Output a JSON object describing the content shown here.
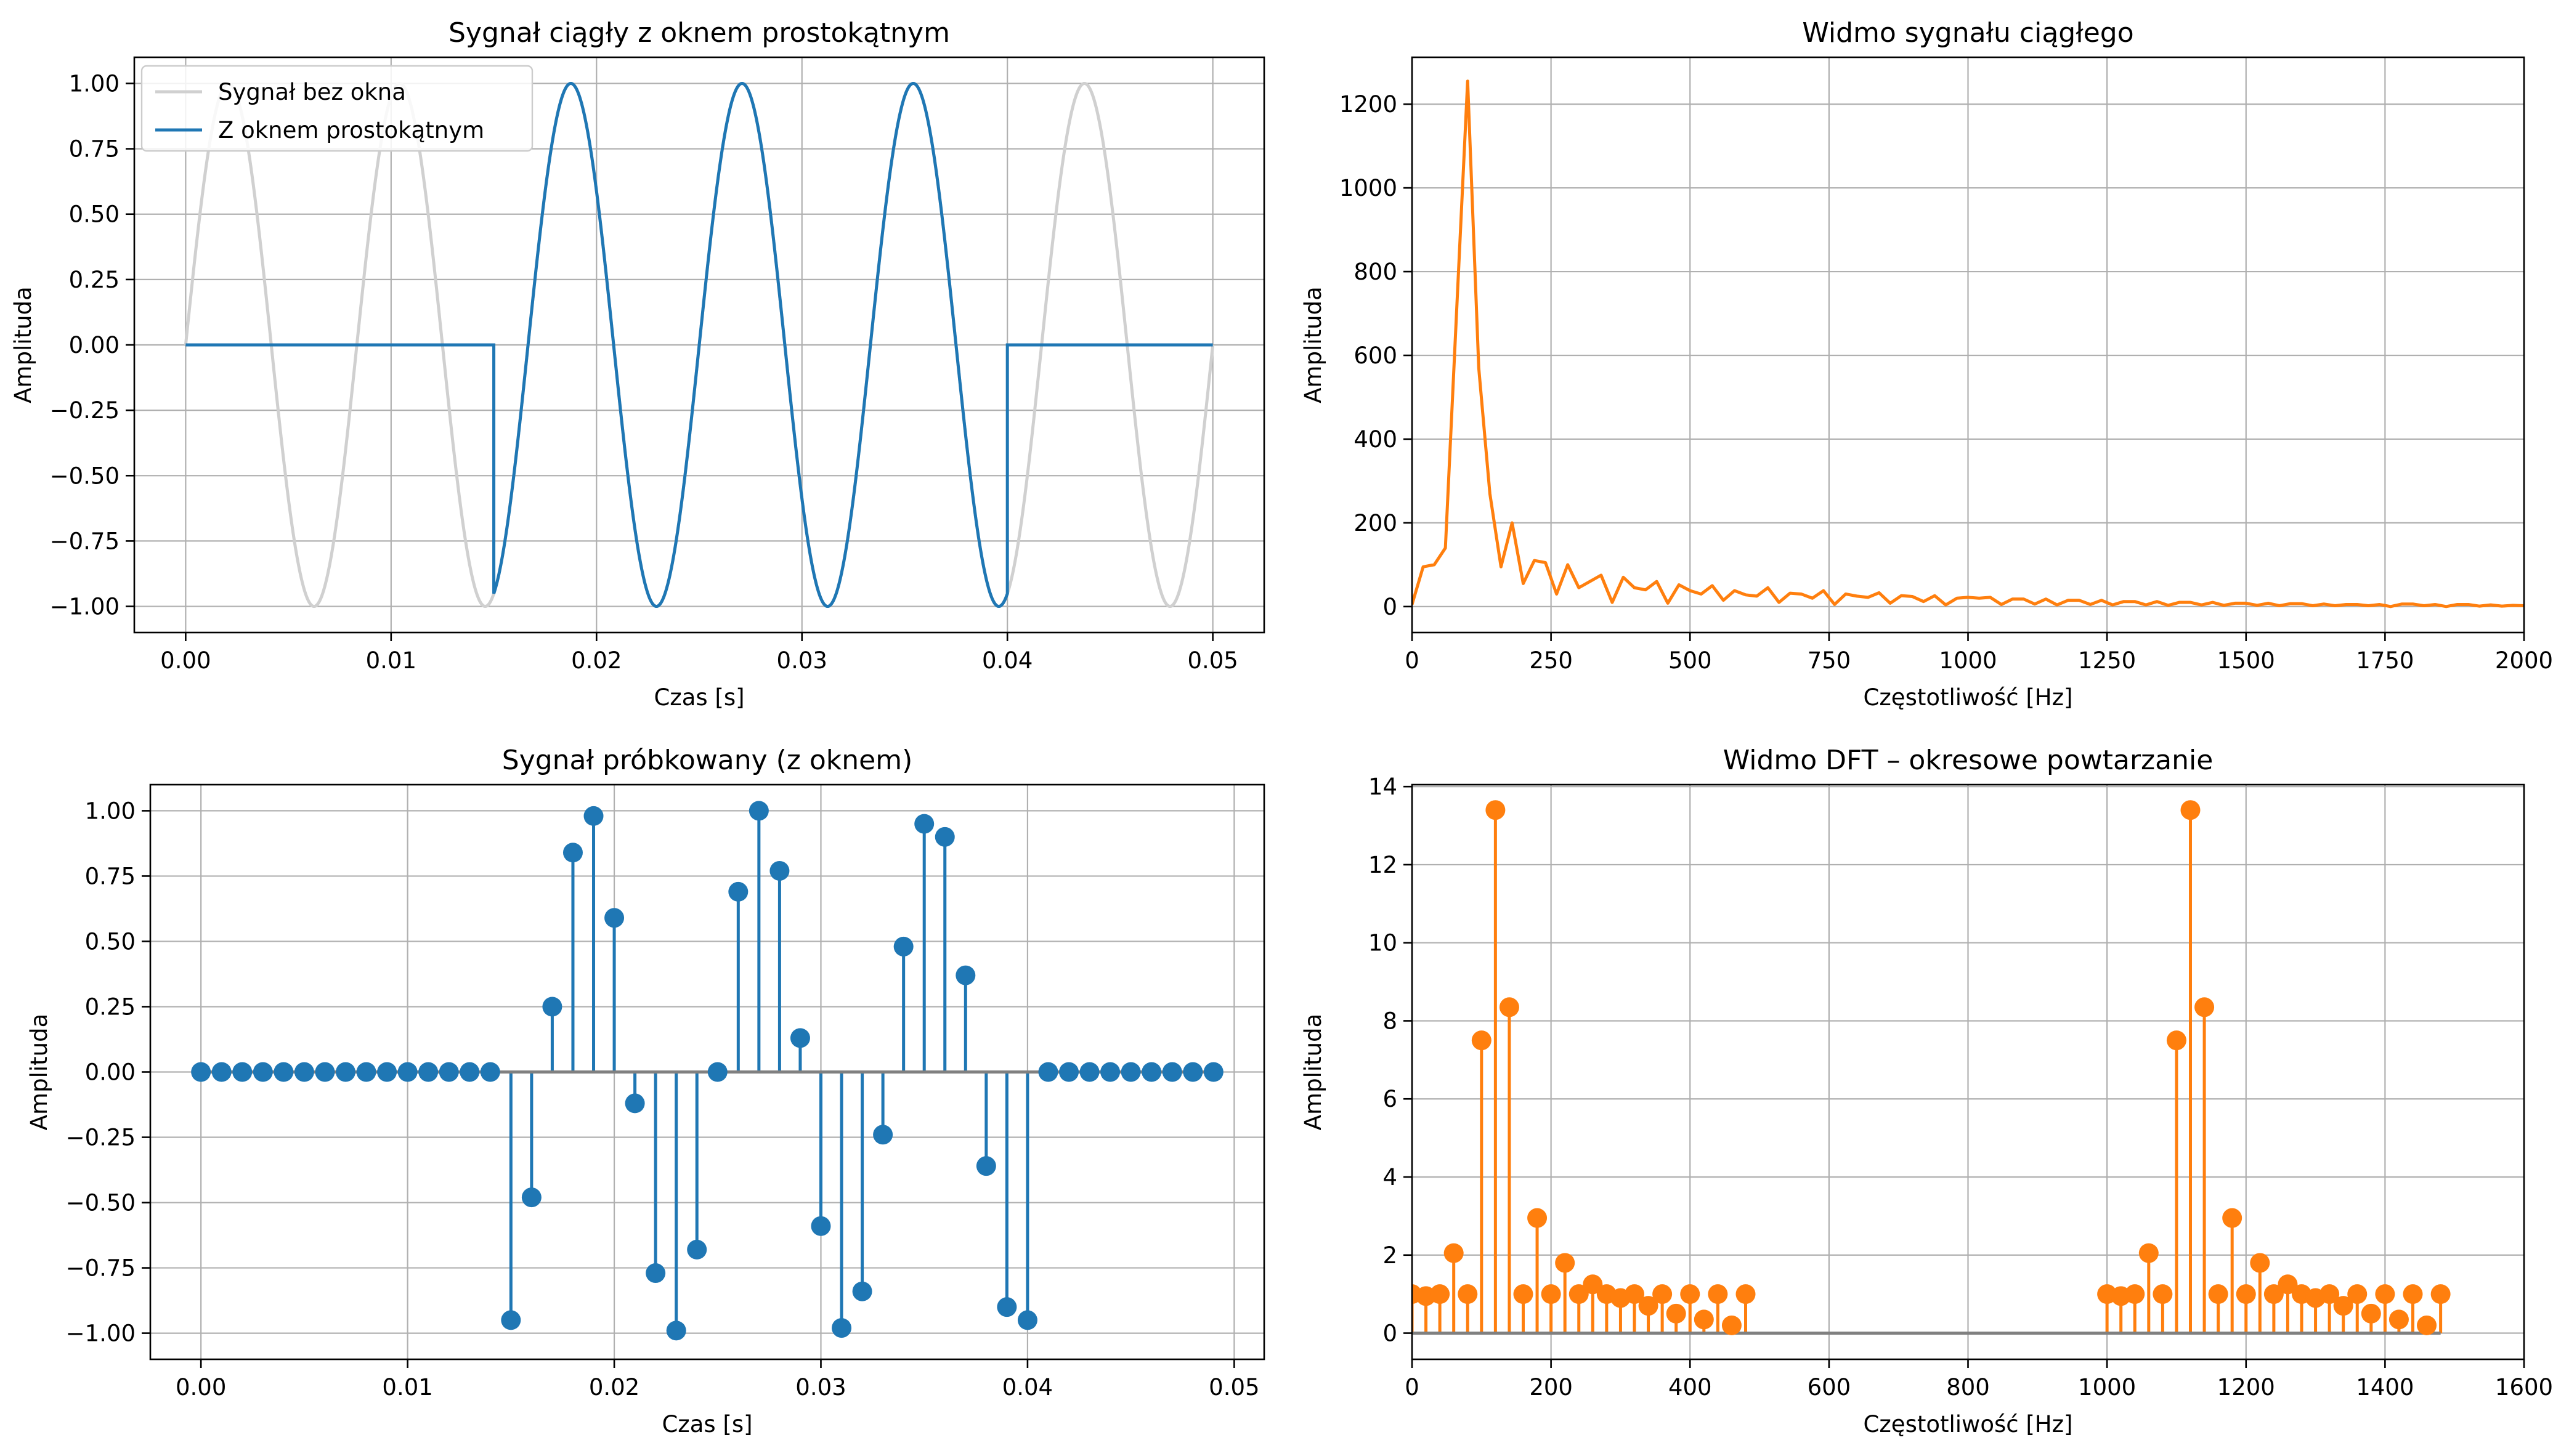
{
  "colors": {
    "blue": "#1f77b4",
    "orange": "#ff7f0e",
    "gray": "#d0d0d0",
    "baseline": "#808080",
    "grid": "#b0b0b0"
  },
  "chart_data": [
    {
      "id": "continuous",
      "type": "line",
      "title": "Sygnał ciągły z oknem prostokątnym",
      "xlabel": "Czas [s]",
      "ylabel": "Amplituda",
      "xlim": [
        -0.0025,
        0.0525
      ],
      "ylim": [
        -1.1,
        1.1
      ],
      "xticks": [
        0,
        0.01,
        0.02,
        0.03,
        0.04,
        0.05
      ],
      "xtick_labels": [
        "0.00",
        "0.01",
        "0.02",
        "0.03",
        "0.04",
        "0.05"
      ],
      "yticks": [
        -1,
        -0.75,
        -0.5,
        -0.25,
        0,
        0.25,
        0.5,
        0.75,
        1
      ],
      "ytick_labels": [
        "−1.00",
        "−0.75",
        "−0.50",
        "−0.25",
        "0.00",
        "0.25",
        "0.50",
        "0.75",
        "1.00"
      ],
      "legend_position": "top-left",
      "series": [
        {
          "name": "Sygnał bez okna",
          "color": "#d0d0d0",
          "function": "sin(2*pi*120*t)",
          "t_range": [
            0,
            0.05
          ]
        },
        {
          "name": "Z oknem prostokątnym",
          "color": "#1f77b4",
          "function": "sin(2*pi*120*t) for 0.015<=t<=0.04, else 0",
          "t_range": [
            0,
            0.05
          ],
          "window": [
            0.015,
            0.04
          ]
        }
      ]
    },
    {
      "id": "spectrum",
      "type": "line",
      "title": "Widmo sygnału ciągłego",
      "xlabel": "Częstotliwość [Hz]",
      "ylabel": "Amplituda",
      "xlim": [
        0,
        2000
      ],
      "ylim": [
        -62,
        1312
      ],
      "xticks": [
        0,
        250,
        500,
        750,
        1000,
        1250,
        1500,
        1750,
        2000
      ],
      "xtick_labels": [
        "0",
        "250",
        "500",
        "750",
        "1000",
        "1250",
        "1500",
        "1750",
        "2000"
      ],
      "yticks": [
        0,
        200,
        400,
        600,
        800,
        1000,
        1200
      ],
      "ytick_labels": [
        "0",
        "200",
        "400",
        "600",
        "800",
        "1000",
        "1200"
      ],
      "series": [
        {
          "name": "spectrum",
          "color": "#ff7f0e",
          "x": [
            0,
            20,
            40,
            60,
            80,
            100,
            120,
            140,
            160,
            180,
            200,
            220,
            240,
            260,
            280,
            300,
            320,
            340,
            360,
            380,
            400,
            420,
            440,
            460,
            480,
            500,
            520,
            540,
            560,
            580,
            600,
            620,
            640,
            660,
            680,
            700,
            720,
            740,
            760,
            780,
            800,
            820,
            840,
            860,
            880,
            900,
            920,
            940,
            960,
            980,
            1000,
            1020,
            1040,
            1060,
            1080,
            1100,
            1120,
            1140,
            1160,
            1180,
            1200,
            1220,
            1240,
            1260,
            1280,
            1300,
            1320,
            1340,
            1360,
            1380,
            1400,
            1420,
            1440,
            1460,
            1480,
            1500,
            1520,
            1540,
            1560,
            1580,
            1600,
            1620,
            1640,
            1660,
            1680,
            1700,
            1720,
            1740,
            1760,
            1780,
            1800,
            1820,
            1840,
            1860,
            1880,
            1900,
            1920,
            1940,
            1960,
            1980,
            2000
          ],
          "y": [
            5,
            95,
            100,
            140,
            700,
            1255,
            570,
            270,
            95,
            200,
            55,
            110,
            105,
            30,
            100,
            45,
            60,
            75,
            10,
            70,
            45,
            40,
            60,
            8,
            52,
            38,
            30,
            50,
            15,
            38,
            28,
            25,
            45,
            10,
            32,
            30,
            20,
            38,
            5,
            30,
            25,
            22,
            33,
            8,
            26,
            24,
            12,
            26,
            4,
            20,
            22,
            20,
            22,
            5,
            18,
            18,
            6,
            18,
            4,
            15,
            15,
            5,
            15,
            4,
            12,
            12,
            4,
            12,
            3,
            10,
            10,
            4,
            10,
            3,
            8,
            8,
            3,
            8,
            2,
            7,
            7,
            2,
            6,
            2,
            5,
            5,
            2,
            5,
            0,
            6,
            6,
            2,
            5,
            0,
            5,
            5,
            1,
            4,
            1,
            3,
            2
          ]
        }
      ]
    },
    {
      "id": "sampled",
      "type": "stem",
      "title": "Sygnał próbkowany (z oknem)",
      "xlabel": "Czas [s]",
      "ylabel": "Amplituda",
      "xlim": [
        -0.00245,
        0.05145
      ],
      "ylim": [
        -1.1,
        1.1
      ],
      "xticks": [
        0,
        0.01,
        0.02,
        0.03,
        0.04,
        0.05
      ],
      "xtick_labels": [
        "0.00",
        "0.01",
        "0.02",
        "0.03",
        "0.04",
        "0.05"
      ],
      "yticks": [
        -1,
        -0.75,
        -0.5,
        -0.25,
        0,
        0.25,
        0.5,
        0.75,
        1
      ],
      "ytick_labels": [
        "−1.00",
        "−0.75",
        "−0.50",
        "−0.25",
        "0.00",
        "0.25",
        "0.50",
        "0.75",
        "1.00"
      ],
      "color": "#1f77b4",
      "x": [
        0,
        0.001,
        0.002,
        0.003,
        0.004,
        0.005,
        0.006,
        0.007,
        0.008,
        0.009,
        0.01,
        0.011,
        0.012,
        0.013,
        0.014,
        0.015,
        0.016,
        0.017,
        0.018,
        0.019,
        0.02,
        0.021,
        0.022,
        0.023,
        0.024,
        0.025,
        0.026,
        0.027,
        0.028,
        0.029,
        0.03,
        0.031,
        0.032,
        0.033,
        0.034,
        0.035,
        0.036,
        0.037,
        0.038,
        0.039,
        0.04,
        0.041,
        0.042,
        0.043,
        0.044,
        0.045,
        0.046,
        0.047,
        0.048,
        0.049
      ],
      "y": [
        0,
        0,
        0,
        0,
        0,
        0,
        0,
        0,
        0,
        0,
        0,
        0,
        0,
        0,
        0,
        -0.95,
        -0.48,
        0.25,
        0.84,
        0.98,
        0.59,
        -0.12,
        -0.77,
        -0.99,
        -0.68,
        0,
        0.69,
        1.0,
        0.77,
        0.13,
        -0.59,
        -0.98,
        -0.84,
        -0.24,
        0.48,
        0.95,
        0.9,
        0.37,
        -0.36,
        -0.9,
        -0.95,
        0,
        0,
        0,
        0,
        0,
        0,
        0,
        0,
        0
      ]
    },
    {
      "id": "dft",
      "type": "stem",
      "title": "Widmo DFT – okresowe powtarzanie",
      "xlabel": "Częstotliwość [Hz]",
      "ylabel": "Amplituda",
      "xlim": [
        0,
        1600
      ],
      "ylim": [
        -0.67,
        14.05
      ],
      "xticks": [
        0,
        200,
        400,
        600,
        800,
        1000,
        1200,
        1400,
        1600
      ],
      "xtick_labels": [
        "0",
        "200",
        "400",
        "600",
        "800",
        "1000",
        "1200",
        "1400",
        "1600"
      ],
      "yticks": [
        0,
        2,
        4,
        6,
        8,
        10,
        12,
        14
      ],
      "ytick_labels": [
        "0",
        "2",
        "4",
        "6",
        "8",
        "10",
        "12",
        "14"
      ],
      "color": "#ff7f0e",
      "x": [
        0,
        20,
        40,
        60,
        80,
        100,
        120,
        140,
        160,
        180,
        200,
        220,
        240,
        260,
        280,
        300,
        320,
        340,
        360,
        380,
        400,
        420,
        440,
        460,
        480,
        1000,
        1020,
        1040,
        1060,
        1080,
        1100,
        1120,
        1140,
        1160,
        1180,
        1200,
        1220,
        1240,
        1260,
        1280,
        1300,
        1320,
        1340,
        1360,
        1380,
        1400,
        1420,
        1440,
        1460,
        1480
      ],
      "y": [
        1.0,
        0.95,
        1.0,
        2.05,
        1.0,
        7.5,
        13.4,
        8.35,
        1.0,
        2.95,
        1.0,
        1.8,
        1.0,
        1.25,
        1.0,
        0.9,
        1.0,
        0.7,
        1.0,
        0.5,
        1.0,
        0.35,
        1.0,
        0.2,
        1.0,
        1.0,
        0.95,
        1.0,
        2.05,
        1.0,
        7.5,
        13.4,
        8.35,
        1.0,
        2.95,
        1.0,
        1.8,
        1.0,
        1.25,
        1.0,
        0.9,
        1.0,
        0.7,
        1.0,
        0.5,
        1.0,
        0.35,
        1.0,
        0.2,
        1.0
      ]
    }
  ]
}
